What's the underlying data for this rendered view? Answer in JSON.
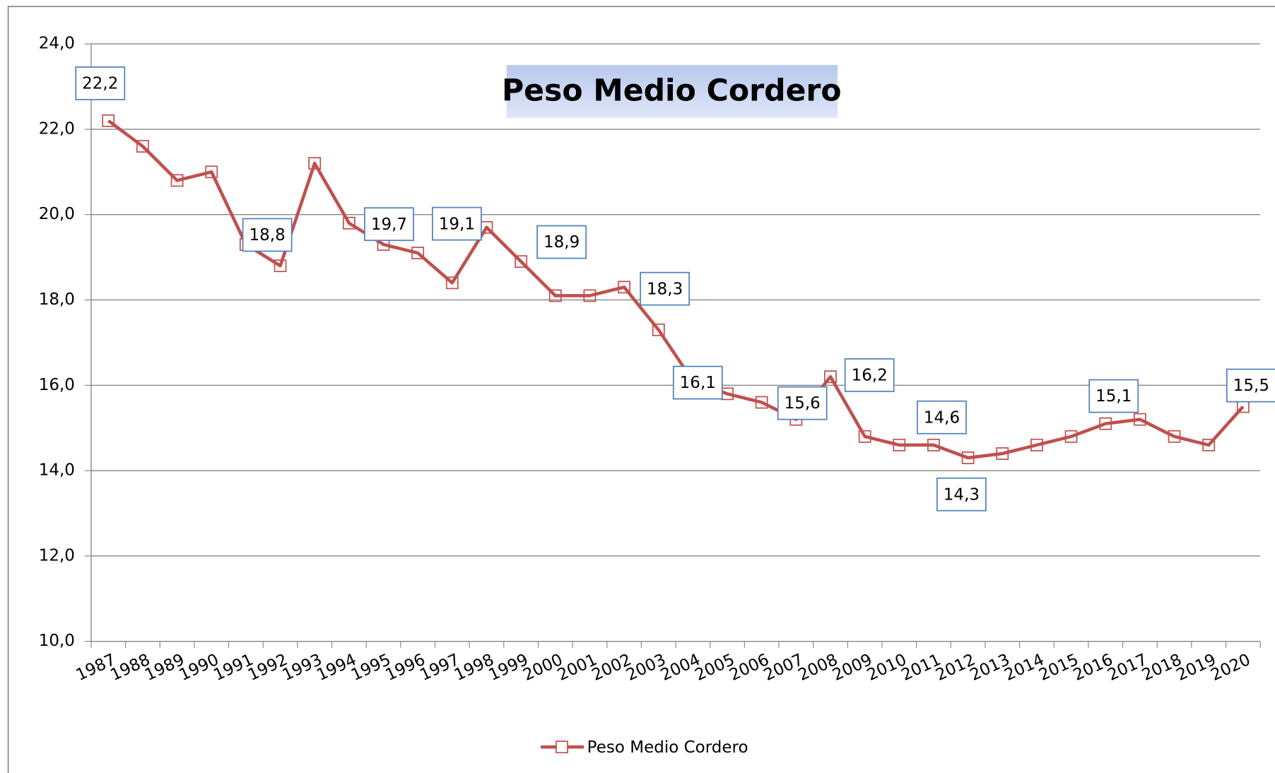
{
  "chart_data": {
    "type": "line",
    "title": "Peso Medio Cordero",
    "categories": [
      "1987",
      "1988",
      "1989",
      "1990",
      "1991",
      "1992",
      "1993",
      "1994",
      "1995",
      "1996",
      "1997",
      "1998",
      "1999",
      "2000",
      "2001",
      "2002",
      "2003",
      "2004",
      "2005",
      "2006",
      "2007",
      "2008",
      "2009",
      "2010",
      "2011",
      "2012",
      "2013",
      "2014",
      "2015",
      "2016",
      "2017",
      "2018",
      "2019",
      "2020"
    ],
    "series": [
      {
        "name": "Peso Medio Cordero",
        "color": "#c0504d",
        "values": [
          22.2,
          21.6,
          20.8,
          21.0,
          19.3,
          18.8,
          21.2,
          19.8,
          19.3,
          19.1,
          18.4,
          19.7,
          18.9,
          18.1,
          18.1,
          18.3,
          17.3,
          16.1,
          15.8,
          15.6,
          15.2,
          16.2,
          14.8,
          14.6,
          14.6,
          14.3,
          14.4,
          14.6,
          14.8,
          15.1,
          15.2,
          14.8,
          14.6,
          15.5
        ],
        "value_labels": [
          "22,2",
          null,
          null,
          null,
          null,
          "18,8",
          null,
          null,
          null,
          "19,1",
          null,
          "19,7",
          "18,9",
          null,
          null,
          "18,3",
          null,
          "16,1",
          null,
          "15,6",
          null,
          "16,2",
          null,
          null,
          "14,6",
          "14,3",
          null,
          null,
          null,
          "15,1",
          null,
          null,
          null,
          "15,5"
        ]
      }
    ],
    "ylim": [
      10,
      24
    ],
    "yticks": [
      {
        "value": 10,
        "label": "10,0"
      },
      {
        "value": 12,
        "label": "12,0"
      },
      {
        "value": 14,
        "label": "14,0"
      },
      {
        "value": 16,
        "label": "16,0"
      },
      {
        "value": 18,
        "label": "18,0"
      },
      {
        "value": 20,
        "label": "20,0"
      },
      {
        "value": 22,
        "label": "22,0"
      },
      {
        "value": 24,
        "label": "24,0"
      }
    ],
    "grid": true,
    "legend": "bottom"
  }
}
